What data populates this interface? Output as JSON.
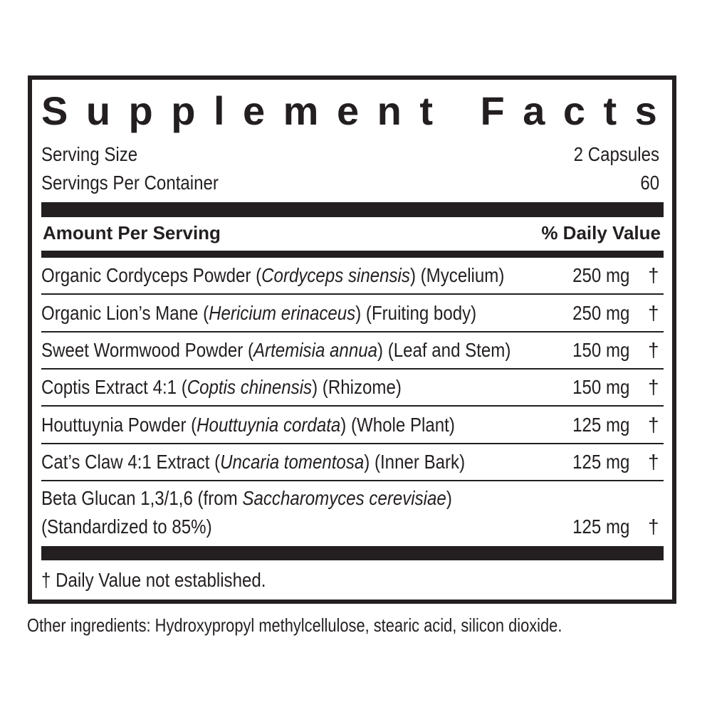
{
  "title": "Supplement Facts",
  "serving_size_label": "Serving Size",
  "serving_size_value": "2 Capsules",
  "servings_per_container_label": "Servings Per Container",
  "servings_per_container_value": "60",
  "header_amount": "Amount Per Serving",
  "header_dv": "% Daily Value",
  "ingredients": [
    {
      "name": "Organic Cordyceps Powder (",
      "latin": "Cordyceps sinensis",
      "part": ") (Mycelium)",
      "amount": "250 mg",
      "dv": "†"
    },
    {
      "name": "Organic Lion’s Mane (",
      "latin": "Hericium erinaceus",
      "part": ") (Fruiting body)",
      "amount": "250 mg",
      "dv": "†"
    },
    {
      "name": "Sweet Wormwood Powder (",
      "latin": "Artemisia annua",
      "part": ") (Leaf and Stem)",
      "amount": "150 mg",
      "dv": "†"
    },
    {
      "name": "Coptis Extract 4:1 (",
      "latin": "Coptis chinensis",
      "part": ") (Rhizome)",
      "amount": "150 mg",
      "dv": "†"
    },
    {
      "name": "Houttuynia Powder (",
      "latin": "Houttuynia cordata",
      "part": ") (Whole Plant)",
      "amount": "125 mg",
      "dv": "†"
    },
    {
      "name": "Cat’s Claw 4:1 Extract (",
      "latin": "Uncaria tomentosa",
      "part": ") (Inner Bark)",
      "amount": "125 mg",
      "dv": "†"
    },
    {
      "name": "Beta Glucan 1,3/1,6 (from ",
      "latin": "Saccharomyces cerevisiae",
      "part": ")",
      "line2": "(Standardized to 85%)",
      "amount": "125 mg",
      "dv": "†"
    }
  ],
  "footnote": "† Daily Value not established.",
  "other_ingredients": "Other ingredients: Hydroxypropyl methylcellulose, stearic acid, silicon dioxide."
}
